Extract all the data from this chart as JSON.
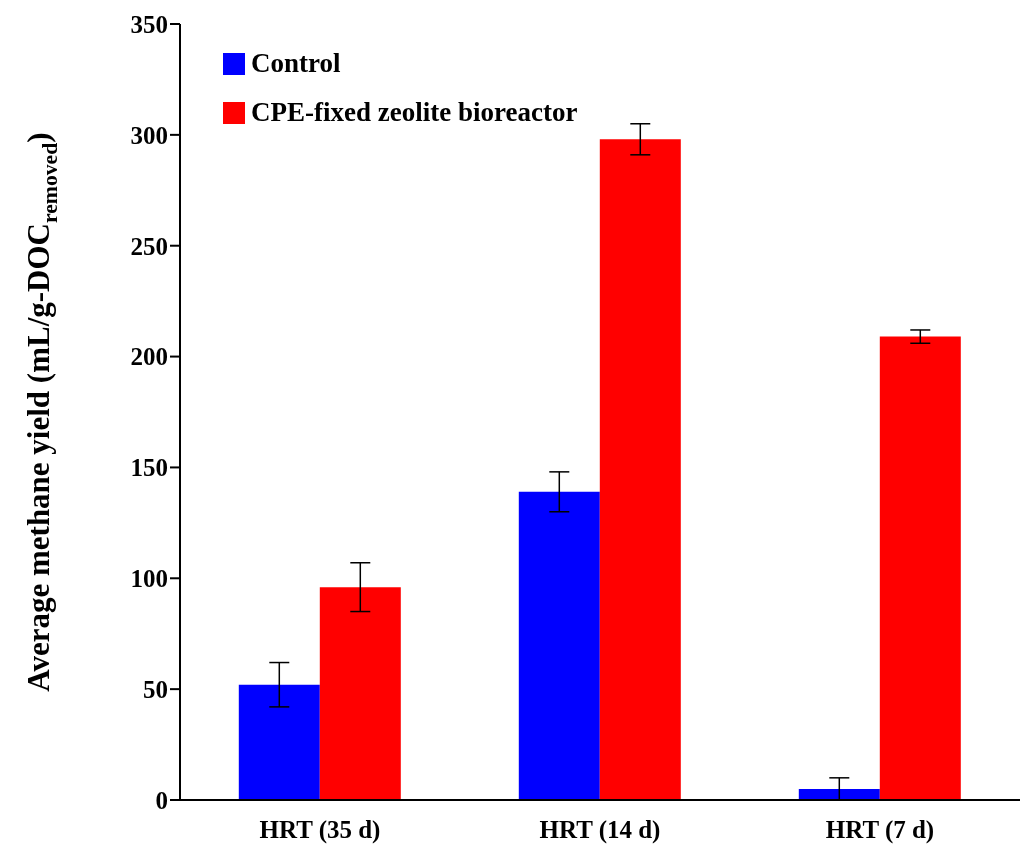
{
  "chart_data": {
    "type": "bar",
    "ylabel": "Average methane  yield (mL/g-DOC$_{removed}$)",
    "categories": [
      "HRT (35 d)",
      "HRT (14 d)",
      "HRT (7 d)"
    ],
    "series": [
      {
        "name": "Control",
        "color": "#0000ff",
        "values": [
          52,
          139,
          5
        ],
        "errors": [
          10,
          9,
          5
        ]
      },
      {
        "name": "CPE-fixed zeolite bioreactor",
        "color": "#ff0000",
        "values": [
          96,
          298,
          209
        ],
        "errors": [
          11,
          7,
          3
        ]
      }
    ],
    "ylim": [
      0,
      350
    ],
    "yticks": [
      0,
      50,
      100,
      150,
      200,
      250,
      300,
      350
    ],
    "grid": false,
    "legend": "top left"
  }
}
